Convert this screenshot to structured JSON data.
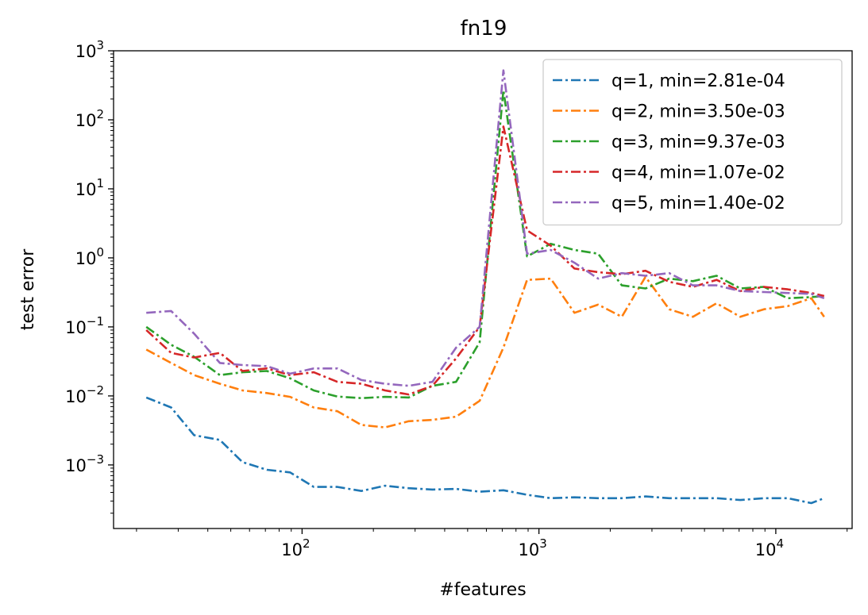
{
  "chart_data": {
    "type": "line",
    "title": "fn19",
    "xlabel": "#features",
    "ylabel": "test error",
    "xscale": "log",
    "yscale": "log",
    "xlim": [
      16,
      21000
    ],
    "ylim": [
      0.00012,
      1000
    ],
    "x_ticks": [
      {
        "value": 100,
        "base": "10",
        "exp": "2"
      },
      {
        "value": 1000,
        "base": "10",
        "exp": "3"
      },
      {
        "value": 10000,
        "base": "10",
        "exp": "4"
      }
    ],
    "y_ticks": [
      {
        "value": 0.001,
        "base": "10",
        "exp": "−3"
      },
      {
        "value": 0.01,
        "base": "10",
        "exp": "−2"
      },
      {
        "value": 0.1,
        "base": "10",
        "exp": "−1"
      },
      {
        "value": 1,
        "base": "10",
        "exp": "0"
      },
      {
        "value": 10,
        "base": "10",
        "exp": "1"
      },
      {
        "value": 100,
        "base": "10",
        "exp": "2"
      },
      {
        "value": 1000,
        "base": "10",
        "exp": "3"
      }
    ],
    "grid": false,
    "legend_position": "top-right",
    "x": [
      22,
      28,
      35,
      45,
      56,
      71,
      89,
      112,
      141,
      178,
      224,
      282,
      355,
      447,
      562,
      708,
      891,
      1122,
      1413,
      1778,
      2239,
      2818,
      3548,
      4467,
      5623,
      7079,
      8913,
      11220,
      14125,
      16000
    ],
    "series": [
      {
        "name": "q=1, min=2.81e-04",
        "color": "#1f77b4",
        "values": [
          0.0095,
          0.0068,
          0.0027,
          0.0023,
          0.0011,
          0.00085,
          0.00078,
          0.00048,
          0.00048,
          0.00042,
          0.0005,
          0.00046,
          0.00044,
          0.00045,
          0.00041,
          0.00043,
          0.00037,
          0.00033,
          0.00034,
          0.00033,
          0.00033,
          0.00035,
          0.00033,
          0.00033,
          0.00033,
          0.00031,
          0.00033,
          0.00033,
          0.00028,
          0.00033
        ]
      },
      {
        "name": "q=2, min=3.50e-03",
        "color": "#ff7f0e",
        "values": [
          0.047,
          0.03,
          0.02,
          0.015,
          0.012,
          0.011,
          0.0097,
          0.0068,
          0.006,
          0.0038,
          0.0035,
          0.0043,
          0.0045,
          0.005,
          0.0085,
          0.05,
          0.48,
          0.5,
          0.16,
          0.21,
          0.14,
          0.53,
          0.18,
          0.14,
          0.22,
          0.14,
          0.18,
          0.2,
          0.26,
          0.14
        ]
      },
      {
        "name": "q=3, min=9.37e-03",
        "color": "#2ca02c",
        "values": [
          0.1,
          0.055,
          0.037,
          0.02,
          0.022,
          0.023,
          0.018,
          0.012,
          0.0098,
          0.0093,
          0.0097,
          0.0095,
          0.014,
          0.016,
          0.06,
          270,
          1.05,
          1.6,
          1.3,
          1.15,
          0.4,
          0.36,
          0.5,
          0.46,
          0.55,
          0.36,
          0.38,
          0.26,
          0.27,
          0.28
        ]
      },
      {
        "name": "q=4, min=1.07e-02",
        "color": "#d62728",
        "values": [
          0.09,
          0.042,
          0.036,
          0.042,
          0.023,
          0.025,
          0.02,
          0.022,
          0.016,
          0.015,
          0.012,
          0.0105,
          0.014,
          0.035,
          0.1,
          80,
          2.5,
          1.5,
          0.7,
          0.62,
          0.58,
          0.65,
          0.45,
          0.38,
          0.48,
          0.33,
          0.38,
          0.35,
          0.31,
          0.28
        ]
      },
      {
        "name": "q=5, min=1.40e-02",
        "color": "#9467bd",
        "values": [
          0.16,
          0.17,
          0.08,
          0.03,
          0.028,
          0.027,
          0.021,
          0.025,
          0.025,
          0.017,
          0.015,
          0.014,
          0.016,
          0.05,
          0.1,
          520,
          1.15,
          1.3,
          0.85,
          0.5,
          0.6,
          0.55,
          0.6,
          0.4,
          0.4,
          0.33,
          0.32,
          0.31,
          0.3,
          0.26
        ]
      }
    ]
  }
}
